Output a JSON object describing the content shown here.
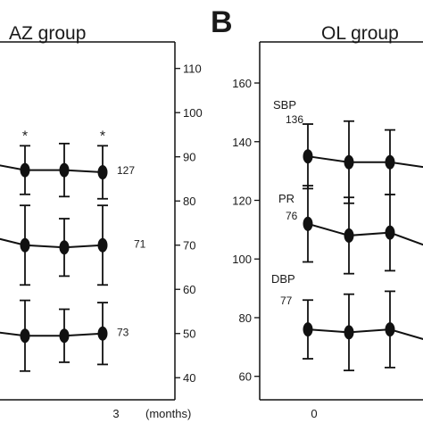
{
  "panels": {
    "left": {
      "title": "AZ group",
      "right_axis_label": "(months)",
      "bottom_tick": "3"
    },
    "right": {
      "letter": "B",
      "title": "OL group",
      "bottom_tick": "0"
    }
  },
  "chart_data": [
    {
      "type": "line",
      "panel": "AZ group",
      "title": "AZ group",
      "xlabel": "(months)",
      "y_axis_side": "right",
      "ylim": [
        35,
        116
      ],
      "yticks": [
        40,
        50,
        60,
        70,
        80,
        90,
        100,
        110
      ],
      "x_tick_labels": [
        "3"
      ],
      "grid": false,
      "series": [
        {
          "label": "127",
          "points": [
            {
              "y": 88.5,
              "err": 0
            },
            {
              "y": 87.0,
              "err": 5.5,
              "star": true
            },
            {
              "y": 87.0,
              "err": 6.0
            },
            {
              "y": 86.5,
              "err": 6.0,
              "star": true
            }
          ]
        },
        {
          "label": "71",
          "points": [
            {
              "y": 72.0,
              "err": 0
            },
            {
              "y": 70.0,
              "err": 9.0
            },
            {
              "y": 69.5,
              "err": 6.5
            },
            {
              "y": 70.0,
              "err": 9.0
            }
          ]
        },
        {
          "label": "73",
          "points": [
            {
              "y": 50.5,
              "err": 0
            },
            {
              "y": 49.5,
              "err": 8.0
            },
            {
              "y": 49.5,
              "err": 6.0
            },
            {
              "y": 50.0,
              "err": 7.0
            }
          ]
        }
      ]
    },
    {
      "type": "line",
      "panel": "OL group",
      "title": "OL group",
      "y_axis_side": "left",
      "ylim": [
        52,
        174
      ],
      "yticks": [
        60,
        80,
        100,
        120,
        140,
        160
      ],
      "x_tick_labels": [
        "0"
      ],
      "grid": false,
      "series": [
        {
          "label": "SBP",
          "baseline": "136",
          "points": [
            {
              "y": 135,
              "err": 11
            },
            {
              "y": 133,
              "err": 14
            },
            {
              "y": 133,
              "err": 11
            },
            {
              "y": 131,
              "err": 13
            }
          ]
        },
        {
          "label": "PR",
          "baseline": "76",
          "points": [
            {
              "y": 112,
              "err": 13
            },
            {
              "y": 108,
              "err": 13
            },
            {
              "y": 109,
              "err": 13
            },
            {
              "y": 104,
              "err": 13
            }
          ]
        },
        {
          "label": "DBP",
          "baseline": "77",
          "points": [
            {
              "y": 76,
              "err": 10
            },
            {
              "y": 75,
              "err": 13
            },
            {
              "y": 76,
              "err": 13
            },
            {
              "y": 72,
              "err": 12
            }
          ]
        }
      ]
    }
  ]
}
